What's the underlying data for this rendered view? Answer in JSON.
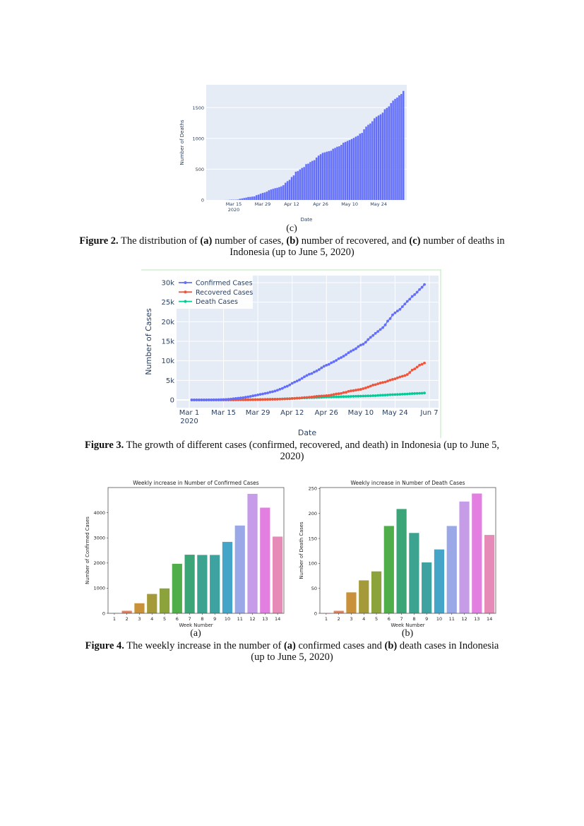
{
  "figure2c": {
    "sublabel": "(c)",
    "caption": {
      "label": "Figure 2.",
      "t1": " The distribution of ",
      "a": "(a)",
      "t2": " number of cases, ",
      "b": "(b)",
      "t3": " number of recovered, and ",
      "c": "(c)",
      "t4": " number of deaths in Indonesia (up to June 5, 2020)"
    }
  },
  "figure3": {
    "caption": {
      "label": "Figure 3.",
      "text": " The growth of different cases (confirmed, recovered, and death) in Indonesia (up to June 5, 2020)"
    }
  },
  "figure4": {
    "sublabel_a": "(a)",
    "sublabel_b": "(b)",
    "caption": {
      "label": "Figure 4.",
      "t1": " The weekly increase in the number of ",
      "a": "(a)",
      "t2": " confirmed cases and ",
      "b": "(b)",
      "t3": " death cases in Indonesia (up to June 5, 2020)"
    }
  },
  "chart_data": [
    {
      "id": "deaths-bar",
      "type": "bar",
      "title": "",
      "xlabel": "Date",
      "ylabel": "Number of Deaths",
      "dates": {
        "start": "2020-03-02",
        "end": "2020-06-05",
        "freq": "daily"
      },
      "xticks": [
        {
          "date": "2020-03-15",
          "label": "Mar 15",
          "sub": "2020"
        },
        {
          "date": "2020-03-29",
          "label": "Mar 29"
        },
        {
          "date": "2020-04-12",
          "label": "Apr 12"
        },
        {
          "date": "2020-04-26",
          "label": "Apr 26"
        },
        {
          "date": "2020-05-10",
          "label": "May 10"
        },
        {
          "date": "2020-05-24",
          "label": "May 24"
        }
      ],
      "yticks": [
        0,
        500,
        1000,
        1500
      ],
      "ylim": [
        0,
        1870
      ],
      "grid": true,
      "color": "#636efa",
      "background": "#e5ecf6",
      "values": [
        0,
        0,
        0,
        0,
        0,
        0,
        0,
        0,
        0,
        1,
        1,
        4,
        5,
        5,
        5,
        7,
        19,
        25,
        32,
        38,
        48,
        49,
        55,
        58,
        78,
        87,
        102,
        114,
        122,
        136,
        157,
        170,
        181,
        191,
        198,
        209,
        221,
        240,
        280,
        306,
        327,
        373,
        399,
        459,
        469,
        496,
        520,
        535,
        582,
        590,
        616,
        635,
        647,
        689,
        720,
        743,
        765,
        773,
        784,
        792,
        800,
        831,
        845,
        864,
        872,
        895,
        930,
        943,
        959,
        973,
        991,
        1007,
        1028,
        1043,
        1076,
        1089,
        1148,
        1191,
        1221,
        1242,
        1278,
        1326,
        1351,
        1372,
        1391,
        1418,
        1473,
        1496,
        1520,
        1573,
        1613,
        1641,
        1663,
        1698,
        1721,
        1770
      ]
    },
    {
      "id": "growth-line",
      "type": "line",
      "title": "",
      "xlabel": "Date",
      "ylabel": "Number of Cases",
      "dates": {
        "start": "2020-03-02",
        "end": "2020-06-05",
        "freq": "daily"
      },
      "xticks": [
        {
          "date": "2020-03-01",
          "label": "Mar 1",
          "sub": "2020"
        },
        {
          "date": "2020-03-15",
          "label": "Mar 15"
        },
        {
          "date": "2020-03-29",
          "label": "Mar 29"
        },
        {
          "date": "2020-04-12",
          "label": "Apr 12"
        },
        {
          "date": "2020-04-26",
          "label": "Apr 26"
        },
        {
          "date": "2020-05-10",
          "label": "May 10"
        },
        {
          "date": "2020-05-24",
          "label": "May 24"
        },
        {
          "date": "2020-06-07",
          "label": "Jun 7"
        }
      ],
      "yticks": [
        {
          "v": 0,
          "label": "0"
        },
        {
          "v": 5000,
          "label": "5k"
        },
        {
          "v": 10000,
          "label": "10k"
        },
        {
          "v": 15000,
          "label": "15k"
        },
        {
          "v": 20000,
          "label": "20k"
        },
        {
          "v": 25000,
          "label": "25k"
        },
        {
          "v": 30000,
          "label": "30k"
        }
      ],
      "ylim": [
        -1800,
        31800
      ],
      "grid": true,
      "legend": "top-left",
      "background": "#e5ecf6",
      "series": [
        {
          "name": "Confirmed Cases",
          "color": "#636efa",
          "values": [
            2,
            2,
            2,
            2,
            4,
            4,
            6,
            19,
            27,
            34,
            34,
            69,
            96,
            117,
            134,
            172,
            227,
            309,
            369,
            450,
            514,
            579,
            686,
            790,
            893,
            1046,
            1155,
            1285,
            1414,
            1528,
            1677,
            1790,
            1986,
            2092,
            2273,
            2491,
            2738,
            2956,
            3293,
            3512,
            3842,
            4241,
            4557,
            4839,
            5136,
            5516,
            5923,
            6248,
            6575,
            6760,
            7135,
            7418,
            7775,
            8211,
            8607,
            8882,
            9096,
            9511,
            9771,
            10118,
            10551,
            10843,
            11192,
            11587,
            12071,
            12438,
            12776,
            13112,
            13645,
            14032,
            14265,
            14749,
            15438,
            16006,
            16496,
            17025,
            17514,
            18010,
            18496,
            19189,
            20162,
            20796,
            21745,
            22271,
            22750,
            23165,
            23851,
            24538,
            25216,
            25773,
            26473,
            26940,
            27549,
            28233,
            28818,
            29521
          ]
        },
        {
          "name": "Recovered Cases",
          "color": "#ef553b",
          "values": [
            0,
            0,
            0,
            0,
            0,
            0,
            0,
            0,
            0,
            2,
            2,
            3,
            5,
            8,
            8,
            8,
            9,
            11,
            15,
            16,
            20,
            29,
            30,
            31,
            35,
            46,
            59,
            64,
            75,
            81,
            103,
            112,
            134,
            150,
            164,
            192,
            204,
            222,
            252,
            282,
            286,
            359,
            380,
            426,
            446,
            548,
            607,
            631,
            686,
            747,
            842,
            913,
            960,
            1002,
            1042,
            1107,
            1151,
            1254,
            1391,
            1522,
            1591,
            1665,
            1876,
            1954,
            2197,
            2317,
            2381,
            2494,
            2607,
            2698,
            2881,
            3063,
            3287,
            3518,
            3803,
            3911,
            4129,
            4324,
            4467,
            4575,
            4838,
            5057,
            5249,
            5402,
            5642,
            5877,
            6057,
            6240,
            6492,
            7015,
            7637,
            7935,
            8406,
            8892,
            9120,
            9443
          ]
        },
        {
          "name": "Death Cases",
          "color": "#00cc96",
          "values": [
            0,
            0,
            0,
            0,
            0,
            0,
            0,
            0,
            0,
            1,
            1,
            4,
            5,
            5,
            5,
            7,
            19,
            25,
            32,
            38,
            48,
            49,
            55,
            58,
            78,
            87,
            102,
            114,
            122,
            136,
            157,
            170,
            181,
            191,
            198,
            209,
            221,
            240,
            280,
            306,
            327,
            373,
            399,
            459,
            469,
            496,
            520,
            535,
            582,
            590,
            616,
            635,
            647,
            689,
            720,
            743,
            765,
            773,
            784,
            792,
            800,
            831,
            845,
            864,
            872,
            895,
            930,
            943,
            959,
            973,
            991,
            1007,
            1028,
            1043,
            1076,
            1089,
            1148,
            1191,
            1221,
            1242,
            1278,
            1326,
            1351,
            1372,
            1391,
            1418,
            1473,
            1496,
            1520,
            1573,
            1613,
            1641,
            1663,
            1698,
            1721,
            1770
          ]
        }
      ]
    },
    {
      "id": "weekly-confirmed",
      "type": "bar",
      "title": "Weekly increase in Number of Confirmed Cases",
      "xlabel": "Week Number",
      "ylabel": "Number of Confirmed Cases",
      "categories": [
        "1",
        "2",
        "3",
        "4",
        "5",
        "6",
        "7",
        "8",
        "9",
        "10",
        "11",
        "12",
        "13",
        "14"
      ],
      "values": [
        10,
        100,
        400,
        770,
        990,
        1970,
        2330,
        2320,
        2320,
        2840,
        3490,
        4750,
        4200,
        3050
      ],
      "yticks": [
        0,
        1000,
        2000,
        3000,
        4000
      ],
      "ylim": [
        0,
        5000
      ],
      "colors": [
        "#f77189",
        "#e0815c",
        "#c8913a",
        "#a59a3a",
        "#8ca23a",
        "#4fae4a",
        "#3ba577",
        "#3ba38f",
        "#3ea3a0",
        "#45a5c9",
        "#9aa8e8",
        "#c69ce8",
        "#e27fe0",
        "#e68ab8"
      ]
    },
    {
      "id": "weekly-deaths",
      "type": "bar",
      "title": "Weekly increase in Number of Death Cases",
      "xlabel": "Week Number",
      "ylabel": "Number of Death Cases",
      "categories": [
        "1",
        "2",
        "3",
        "4",
        "5",
        "6",
        "7",
        "8",
        "9",
        "10",
        "11",
        "12",
        "13",
        "14"
      ],
      "values": [
        0,
        5,
        42,
        66,
        84,
        175,
        209,
        161,
        102,
        128,
        175,
        224,
        240,
        157
      ],
      "yticks": [
        0,
        50,
        100,
        150,
        200,
        250
      ],
      "ylim": [
        0,
        252
      ],
      "colors": [
        "#f77189",
        "#e0815c",
        "#c8913a",
        "#a59a3a",
        "#8ca23a",
        "#4fae4a",
        "#3ba577",
        "#3ba38f",
        "#3ea3a0",
        "#45a5c9",
        "#9aa8e8",
        "#c69ce8",
        "#e27fe0",
        "#e68ab8"
      ]
    }
  ]
}
